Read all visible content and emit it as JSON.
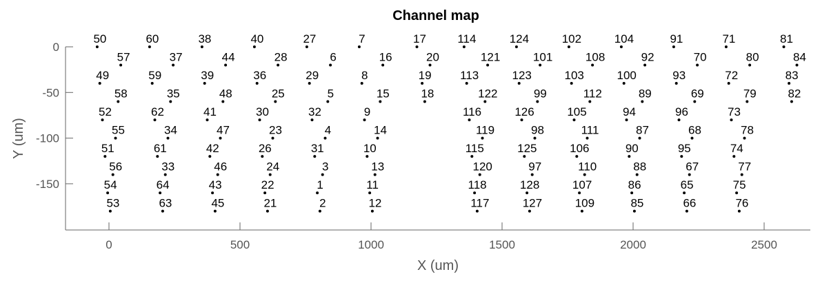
{
  "chart_data": {
    "type": "scatter",
    "title": "Channel map",
    "xlabel": "X (um)",
    "ylabel": "Y (um)",
    "xlim": [
      -160,
      2680
    ],
    "ylim": [
      -200,
      10
    ],
    "xticks": [
      0,
      500,
      1000,
      1500,
      2000,
      2500
    ],
    "yticks": [
      0,
      -50,
      -100,
      -150
    ],
    "xtick_labels": [
      "0",
      "500",
      "1000",
      "1500",
      "2000",
      "2500"
    ],
    "ytick_labels": [
      "0",
      "-50",
      "-100",
      "-150"
    ],
    "grid": false,
    "points": [
      {
        "ch": "50",
        "x": -45,
        "y": 0
      },
      {
        "ch": "57",
        "x": 45,
        "y": -20
      },
      {
        "ch": "49",
        "x": -35,
        "y": -40
      },
      {
        "ch": "58",
        "x": 35,
        "y": -60
      },
      {
        "ch": "52",
        "x": -25,
        "y": -80
      },
      {
        "ch": "55",
        "x": 25,
        "y": -100
      },
      {
        "ch": "51",
        "x": -15,
        "y": -120
      },
      {
        "ch": "56",
        "x": 15,
        "y": -140
      },
      {
        "ch": "54",
        "x": -5,
        "y": -160
      },
      {
        "ch": "53",
        "x": 5,
        "y": -180
      },
      {
        "ch": "60",
        "x": 155,
        "y": 0
      },
      {
        "ch": "37",
        "x": 245,
        "y": -20
      },
      {
        "ch": "59",
        "x": 165,
        "y": -40
      },
      {
        "ch": "35",
        "x": 235,
        "y": -60
      },
      {
        "ch": "62",
        "x": 175,
        "y": -80
      },
      {
        "ch": "34",
        "x": 225,
        "y": -100
      },
      {
        "ch": "61",
        "x": 185,
        "y": -120
      },
      {
        "ch": "33",
        "x": 215,
        "y": -140
      },
      {
        "ch": "64",
        "x": 195,
        "y": -160
      },
      {
        "ch": "63",
        "x": 205,
        "y": -180
      },
      {
        "ch": "38",
        "x": 355,
        "y": 0
      },
      {
        "ch": "44",
        "x": 445,
        "y": -20
      },
      {
        "ch": "39",
        "x": 365,
        "y": -40
      },
      {
        "ch": "48",
        "x": 435,
        "y": -60
      },
      {
        "ch": "41",
        "x": 375,
        "y": -80
      },
      {
        "ch": "47",
        "x": 425,
        "y": -100
      },
      {
        "ch": "42",
        "x": 385,
        "y": -120
      },
      {
        "ch": "46",
        "x": 415,
        "y": -140
      },
      {
        "ch": "43",
        "x": 395,
        "y": -160
      },
      {
        "ch": "45",
        "x": 405,
        "y": -180
      },
      {
        "ch": "40",
        "x": 555,
        "y": 0
      },
      {
        "ch": "28",
        "x": 645,
        "y": -20
      },
      {
        "ch": "36",
        "x": 565,
        "y": -40
      },
      {
        "ch": "25",
        "x": 635,
        "y": -60
      },
      {
        "ch": "30",
        "x": 575,
        "y": -80
      },
      {
        "ch": "23",
        "x": 625,
        "y": -100
      },
      {
        "ch": "26",
        "x": 585,
        "y": -120
      },
      {
        "ch": "24",
        "x": 615,
        "y": -140
      },
      {
        "ch": "22",
        "x": 595,
        "y": -160
      },
      {
        "ch": "21",
        "x": 605,
        "y": -180
      },
      {
        "ch": "27",
        "x": 755,
        "y": 0
      },
      {
        "ch": "6",
        "x": 845,
        "y": -20
      },
      {
        "ch": "29",
        "x": 765,
        "y": -40
      },
      {
        "ch": "5",
        "x": 835,
        "y": -60
      },
      {
        "ch": "32",
        "x": 775,
        "y": -80
      },
      {
        "ch": "4",
        "x": 825,
        "y": -100
      },
      {
        "ch": "31",
        "x": 785,
        "y": -120
      },
      {
        "ch": "3",
        "x": 815,
        "y": -140
      },
      {
        "ch": "1",
        "x": 795,
        "y": -160
      },
      {
        "ch": "2",
        "x": 805,
        "y": -180
      },
      {
        "ch": "7",
        "x": 955,
        "y": 0
      },
      {
        "ch": "16",
        "x": 1045,
        "y": -20
      },
      {
        "ch": "8",
        "x": 965,
        "y": -40
      },
      {
        "ch": "15",
        "x": 1035,
        "y": -60
      },
      {
        "ch": "9",
        "x": 975,
        "y": -80
      },
      {
        "ch": "14",
        "x": 1025,
        "y": -100
      },
      {
        "ch": "10",
        "x": 985,
        "y": -120
      },
      {
        "ch": "13",
        "x": 1015,
        "y": -140
      },
      {
        "ch": "11",
        "x": 995,
        "y": -160
      },
      {
        "ch": "12",
        "x": 1005,
        "y": -180
      },
      {
        "ch": "17",
        "x": 1175,
        "y": 0
      },
      {
        "ch": "20",
        "x": 1225,
        "y": -20
      },
      {
        "ch": "19",
        "x": 1195,
        "y": -40
      },
      {
        "ch": "18",
        "x": 1205,
        "y": -60
      },
      {
        "ch": "114",
        "x": 1355,
        "y": 0
      },
      {
        "ch": "121",
        "x": 1445,
        "y": -20
      },
      {
        "ch": "113",
        "x": 1365,
        "y": -40
      },
      {
        "ch": "122",
        "x": 1435,
        "y": -60
      },
      {
        "ch": "116",
        "x": 1375,
        "y": -80
      },
      {
        "ch": "119",
        "x": 1425,
        "y": -100
      },
      {
        "ch": "115",
        "x": 1385,
        "y": -120
      },
      {
        "ch": "120",
        "x": 1415,
        "y": -140
      },
      {
        "ch": "118",
        "x": 1395,
        "y": -160
      },
      {
        "ch": "117",
        "x": 1405,
        "y": -180
      },
      {
        "ch": "124",
        "x": 1555,
        "y": 0
      },
      {
        "ch": "101",
        "x": 1645,
        "y": -20
      },
      {
        "ch": "123",
        "x": 1565,
        "y": -40
      },
      {
        "ch": "99",
        "x": 1635,
        "y": -60
      },
      {
        "ch": "126",
        "x": 1575,
        "y": -80
      },
      {
        "ch": "98",
        "x": 1625,
        "y": -100
      },
      {
        "ch": "125",
        "x": 1585,
        "y": -120
      },
      {
        "ch": "97",
        "x": 1615,
        "y": -140
      },
      {
        "ch": "128",
        "x": 1595,
        "y": -160
      },
      {
        "ch": "127",
        "x": 1605,
        "y": -180
      },
      {
        "ch": "102",
        "x": 1755,
        "y": 0
      },
      {
        "ch": "108",
        "x": 1845,
        "y": -20
      },
      {
        "ch": "103",
        "x": 1765,
        "y": -40
      },
      {
        "ch": "112",
        "x": 1835,
        "y": -60
      },
      {
        "ch": "105",
        "x": 1775,
        "y": -80
      },
      {
        "ch": "111",
        "x": 1825,
        "y": -100
      },
      {
        "ch": "106",
        "x": 1785,
        "y": -120
      },
      {
        "ch": "110",
        "x": 1815,
        "y": -140
      },
      {
        "ch": "107",
        "x": 1795,
        "y": -160
      },
      {
        "ch": "109",
        "x": 1805,
        "y": -180
      },
      {
        "ch": "104",
        "x": 1955,
        "y": 0
      },
      {
        "ch": "92",
        "x": 2045,
        "y": -20
      },
      {
        "ch": "100",
        "x": 1965,
        "y": -40
      },
      {
        "ch": "89",
        "x": 2035,
        "y": -60
      },
      {
        "ch": "94",
        "x": 1975,
        "y": -80
      },
      {
        "ch": "87",
        "x": 2025,
        "y": -100
      },
      {
        "ch": "90",
        "x": 1985,
        "y": -120
      },
      {
        "ch": "88",
        "x": 2015,
        "y": -140
      },
      {
        "ch": "86",
        "x": 1995,
        "y": -160
      },
      {
        "ch": "85",
        "x": 2005,
        "y": -180
      },
      {
        "ch": "91",
        "x": 2155,
        "y": 0
      },
      {
        "ch": "70",
        "x": 2245,
        "y": -20
      },
      {
        "ch": "93",
        "x": 2165,
        "y": -40
      },
      {
        "ch": "69",
        "x": 2235,
        "y": -60
      },
      {
        "ch": "96",
        "x": 2175,
        "y": -80
      },
      {
        "ch": "68",
        "x": 2225,
        "y": -100
      },
      {
        "ch": "95",
        "x": 2185,
        "y": -120
      },
      {
        "ch": "67",
        "x": 2215,
        "y": -140
      },
      {
        "ch": "65",
        "x": 2195,
        "y": -160
      },
      {
        "ch": "66",
        "x": 2205,
        "y": -180
      },
      {
        "ch": "71",
        "x": 2355,
        "y": 0
      },
      {
        "ch": "80",
        "x": 2445,
        "y": -20
      },
      {
        "ch": "72",
        "x": 2365,
        "y": -40
      },
      {
        "ch": "79",
        "x": 2435,
        "y": -60
      },
      {
        "ch": "73",
        "x": 2375,
        "y": -80
      },
      {
        "ch": "78",
        "x": 2425,
        "y": -100
      },
      {
        "ch": "74",
        "x": 2385,
        "y": -120
      },
      {
        "ch": "77",
        "x": 2415,
        "y": -140
      },
      {
        "ch": "75",
        "x": 2395,
        "y": -160
      },
      {
        "ch": "76",
        "x": 2405,
        "y": -180
      },
      {
        "ch": "81",
        "x": 2575,
        "y": 0
      },
      {
        "ch": "84",
        "x": 2625,
        "y": -20
      },
      {
        "ch": "83",
        "x": 2595,
        "y": -40
      },
      {
        "ch": "82",
        "x": 2605,
        "y": -60
      }
    ]
  }
}
